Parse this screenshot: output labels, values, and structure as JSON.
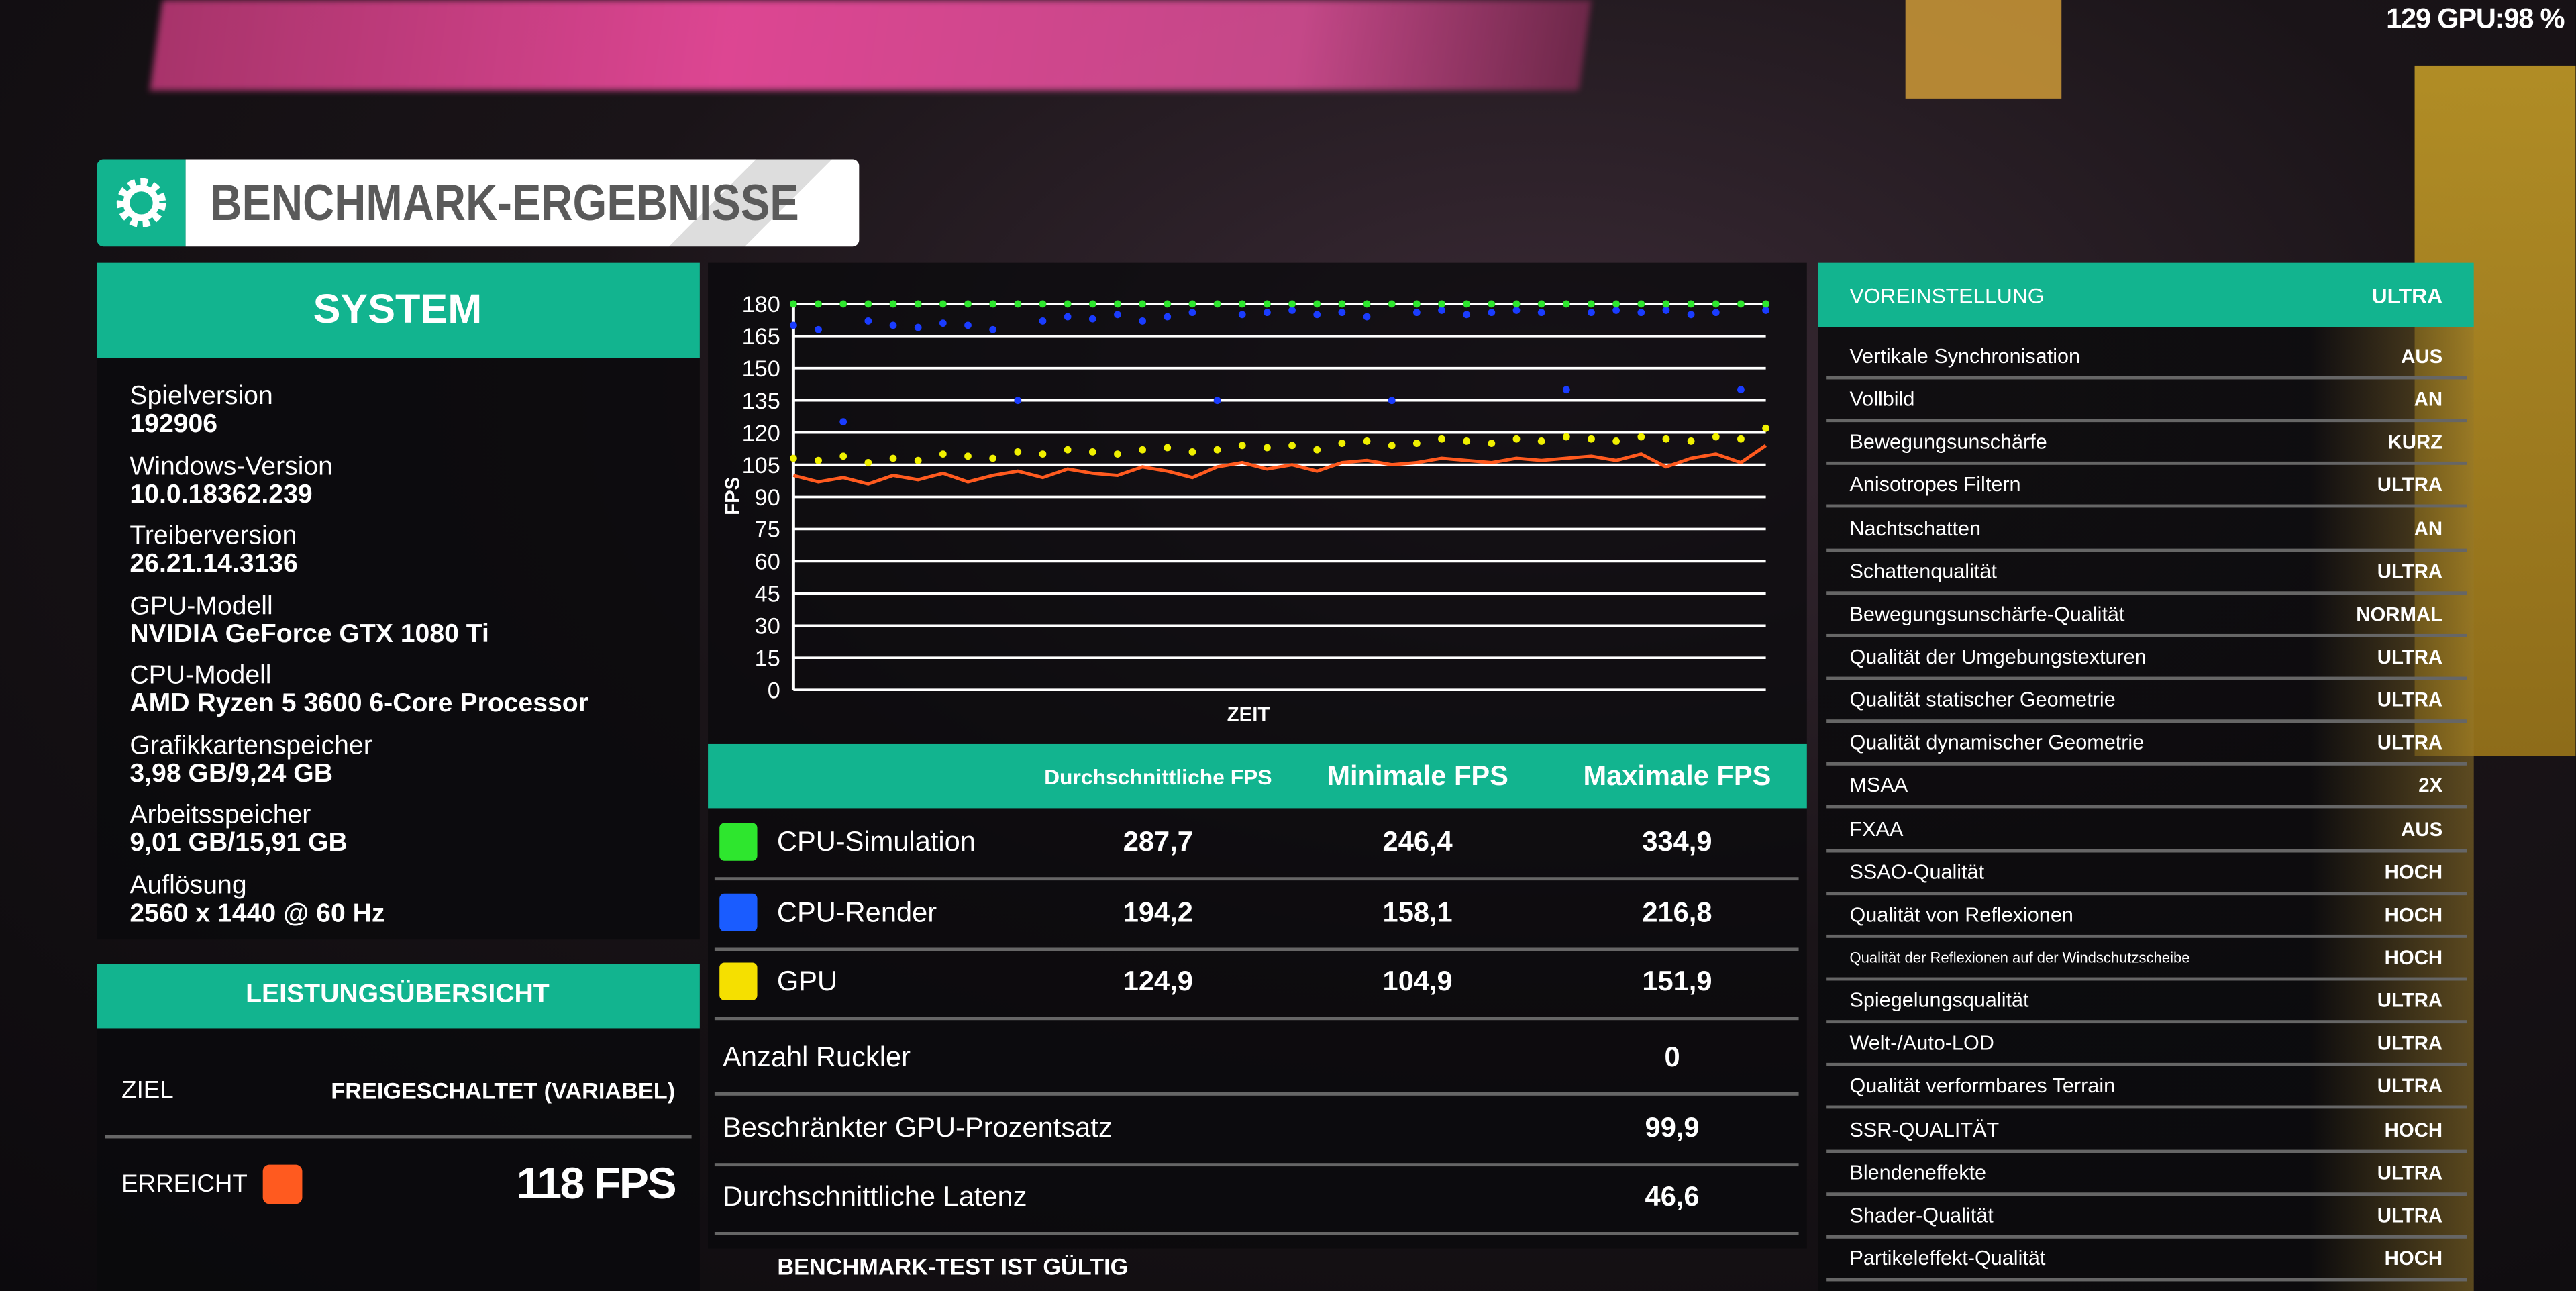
{
  "hud": "129 GPU:98 %",
  "header": {
    "title": "BENCHMARK-ERGEBNISSE"
  },
  "system": {
    "title": "SYSTEM",
    "items": [
      {
        "label": "Spielversion",
        "value": "192906"
      },
      {
        "label": "Windows-Version",
        "value": "10.0.18362.239"
      },
      {
        "label": "Treiberversion",
        "value": "26.21.14.3136"
      },
      {
        "label": "GPU-Modell",
        "value": "NVIDIA GeForce GTX 1080 Ti"
      },
      {
        "label": "CPU-Modell",
        "value": "AMD Ryzen 5 3600 6-Core Processor"
      },
      {
        "label": "Grafikkartenspeicher",
        "value": "3,98 GB/9,24 GB"
      },
      {
        "label": "Arbeitsspeicher",
        "value": "9,01 GB/15,91 GB"
      },
      {
        "label": "Auflösung",
        "value": "2560 x 1440 @ 60 Hz"
      }
    ]
  },
  "performance": {
    "title": "LEISTUNGSÜBERSICHT",
    "target_label": "ZIEL",
    "target_value": "FREIGESCHALTET (VARIABEL)",
    "achieved_label": "ERREICHT",
    "achieved_color": "#ff5a1f",
    "achieved_value": "118 FPS"
  },
  "chart_data": {
    "type": "scatter",
    "ylabel": "FPS",
    "xlabel": "ZEIT",
    "ylim": [
      0,
      180
    ],
    "yticks": [
      0,
      15,
      30,
      45,
      60,
      75,
      90,
      105,
      120,
      135,
      150,
      165,
      180
    ],
    "grid": true,
    "series": [
      {
        "color": "#1a3cff",
        "style": "points",
        "values": [
          170,
          168,
          125,
          172,
          170,
          169,
          171,
          170,
          168,
          135,
          172,
          174,
          173,
          175,
          172,
          174,
          176,
          135,
          175,
          176,
          177,
          175,
          176,
          174,
          135,
          176,
          177,
          175,
          176,
          177,
          176,
          140,
          176,
          177,
          176,
          177,
          175,
          176,
          140,
          177
        ]
      },
      {
        "color": "#2ee62e",
        "style": "points",
        "values": [
          180,
          180,
          180,
          180,
          180,
          180,
          180,
          180,
          180,
          180,
          180,
          180,
          180,
          180,
          180,
          180,
          180,
          180,
          180,
          180,
          180,
          180,
          180,
          180,
          180,
          180,
          180,
          180,
          180,
          180,
          180,
          180,
          180,
          180,
          180,
          180,
          180,
          180,
          180,
          180
        ]
      },
      {
        "color": "#ff5a1f",
        "style": "line",
        "values": [
          100,
          97,
          99,
          96,
          100,
          98,
          101,
          97,
          100,
          102,
          99,
          103,
          101,
          100,
          104,
          102,
          99,
          104,
          106,
          103,
          105,
          102,
          106,
          107,
          105,
          106,
          108,
          107,
          106,
          108,
          107,
          108,
          109,
          107,
          110,
          104,
          108,
          110,
          106,
          114
        ]
      },
      {
        "color": "#f0f000",
        "style": "points",
        "values": [
          108,
          107,
          109,
          106,
          108,
          107,
          110,
          109,
          108,
          111,
          110,
          112,
          111,
          110,
          112,
          113,
          111,
          112,
          114,
          113,
          114,
          112,
          115,
          116,
          114,
          115,
          117,
          116,
          115,
          117,
          116,
          118,
          117,
          116,
          118,
          117,
          116,
          118,
          117,
          122
        ]
      }
    ]
  },
  "table": {
    "columns": [
      "Durchschnittliche FPS",
      "Minimale FPS",
      "Maximale FPS"
    ],
    "rows": [
      {
        "name": "CPU-Simulation",
        "color": "#2ee62e",
        "cells": [
          "287,7",
          "246,4",
          "334,9"
        ]
      },
      {
        "name": "CPU-Render",
        "color": "#1a5cff",
        "cells": [
          "194,2",
          "158,1",
          "216,8"
        ]
      },
      {
        "name": "GPU",
        "color": "#f5e000",
        "cells": [
          "124,9",
          "104,9",
          "151,9"
        ]
      }
    ],
    "summary": [
      {
        "label": "Anzahl Ruckler",
        "value": "0"
      },
      {
        "label": "Beschränkter GPU-Prozentsatz",
        "value": "99,9"
      },
      {
        "label": "Durchschnittliche Latenz",
        "value": "46,6"
      }
    ]
  },
  "footer": "BENCHMARK-TEST IST GÜLTIG",
  "settings": {
    "preset_label": "VOREINSTELLUNG",
    "preset_value": "ULTRA",
    "items": [
      {
        "label": "Vertikale Synchronisation",
        "value": "AUS"
      },
      {
        "label": "Vollbild",
        "value": "AN"
      },
      {
        "label": "Bewegungsunschärfe",
        "value": "KURZ"
      },
      {
        "label": "Anisotropes Filtern",
        "value": "ULTRA"
      },
      {
        "label": "Nachtschatten",
        "value": "AN"
      },
      {
        "label": "Schattenqualität",
        "value": "ULTRA"
      },
      {
        "label": "Bewegungsunschärfe-Qualität",
        "value": "NORMAL"
      },
      {
        "label": "Qualität der Umgebungstexturen",
        "value": "ULTRA"
      },
      {
        "label": "Qualität statischer Geometrie",
        "value": "ULTRA"
      },
      {
        "label": "Qualität dynamischer Geometrie",
        "value": "ULTRA"
      },
      {
        "label": "MSAA",
        "value": "2X"
      },
      {
        "label": "FXAA",
        "value": "AUS"
      },
      {
        "label": "SSAO-Qualität",
        "value": "HOCH"
      },
      {
        "label": "Qualität von Reflexionen",
        "value": "HOCH"
      },
      {
        "label": "Qualität der Reflexionen auf der Windschutzscheibe",
        "value": "HOCH"
      },
      {
        "label": "Spiegelungsqualität",
        "value": "ULTRA"
      },
      {
        "label": "Welt-/Auto-LOD",
        "value": "ULTRA"
      },
      {
        "label": "Qualität verformbares Terrain",
        "value": "ULTRA"
      },
      {
        "label": "SSR-QUALITÄT",
        "value": "HOCH"
      },
      {
        "label": "Blendeneffekte",
        "value": "ULTRA"
      },
      {
        "label": "Shader-Qualität",
        "value": "ULTRA"
      },
      {
        "label": "Partikeleffekt-Qualität",
        "value": "HOCH"
      }
    ]
  }
}
